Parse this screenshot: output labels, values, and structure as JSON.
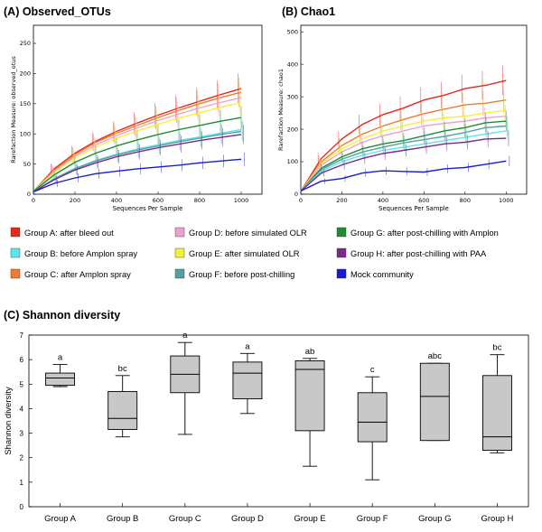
{
  "panel_a_title": "(A) Observed_OTUs",
  "panel_b_title": "(B) Chao1",
  "panel_c_title": "(C) Shannon diversity",
  "legend": [
    {
      "label": "Group A: after bleed out",
      "color": "#e8261e"
    },
    {
      "label": "Group B: before Amplon spray",
      "color": "#5ee6ee"
    },
    {
      "label": "Group C: after Amplon spray",
      "color": "#ee7c2c"
    },
    {
      "label": "Group D: before simulated OLR",
      "color": "#f0a0d0"
    },
    {
      "label": "Group E: after simulated OLR",
      "color": "#f2f23a"
    },
    {
      "label": "Group F: before post-chilling",
      "color": "#55a0a0"
    },
    {
      "label": "Group G: after post-chilling with Amplon",
      "color": "#1e8a34"
    },
    {
      "label": "Group H: after post-chilling with PAA",
      "color": "#7b2a8a"
    },
    {
      "label": "Mock community",
      "color": "#1a1ad4"
    }
  ],
  "chart_data": [
    {
      "type": "line",
      "title": "(A) Observed_OTUs",
      "xlabel": "Sequences Per Sample",
      "ylabel": "Rarefaction Measure: observed_otus",
      "xlim": [
        0,
        1100
      ],
      "ylim": [
        0,
        280
      ],
      "xticks": [
        "0",
        "200",
        "400",
        "600",
        "800",
        "1000"
      ],
      "yticks": [
        "0",
        "50",
        "100",
        "150",
        "200",
        "250"
      ],
      "x": [
        1,
        100,
        200,
        300,
        400,
        500,
        600,
        700,
        800,
        900,
        1000
      ],
      "series": [
        {
          "name": "Group A: after bleed out",
          "values": [
            5,
            42,
            68,
            88,
            104,
            118,
            131,
            143,
            154,
            165,
            175
          ]
        },
        {
          "name": "Group C: after Amplon spray",
          "values": [
            5,
            40,
            66,
            86,
            101,
            114,
            127,
            139,
            150,
            160,
            169
          ]
        },
        {
          "name": "Group D: before simulated OLR",
          "values": [
            5,
            38,
            63,
            82,
            97,
            110,
            122,
            133,
            143,
            152,
            160
          ]
        },
        {
          "name": "Group E: after simulated OLR",
          "values": [
            5,
            36,
            60,
            78,
            93,
            105,
            116,
            126,
            135,
            144,
            152
          ]
        },
        {
          "name": "Group G: after post-chilling with Amplon",
          "values": [
            5,
            32,
            53,
            68,
            80,
            90,
            99,
            107,
            114,
            121,
            127
          ]
        },
        {
          "name": "Group B: before Amplon spray",
          "values": [
            4,
            26,
            43,
            56,
            66,
            75,
            82,
            89,
            95,
            101,
            107
          ]
        },
        {
          "name": "Group F: before post-chilling",
          "values": [
            4,
            25,
            42,
            55,
            65,
            73,
            80,
            87,
            93,
            99,
            104
          ]
        },
        {
          "name": "Group H: after post-chilling with PAA",
          "values": [
            4,
            24,
            40,
            52,
            62,
            70,
            77,
            83,
            89,
            94,
            99
          ]
        },
        {
          "name": "Mock community",
          "values": [
            4,
            18,
            27,
            34,
            38,
            42,
            45,
            48,
            52,
            55,
            58
          ]
        }
      ]
    },
    {
      "type": "line",
      "title": "(B) Chao1",
      "xlabel": "Sequences Per Sample",
      "ylabel": "Rarefaction Measure: chao1",
      "xlim": [
        0,
        1100
      ],
      "ylim": [
        0,
        520
      ],
      "xticks": [
        "0",
        "200",
        "400",
        "600",
        "800",
        "1000"
      ],
      "yticks": [
        "0",
        "100",
        "200",
        "300",
        "400",
        "500"
      ],
      "x": [
        1,
        100,
        200,
        300,
        400,
        500,
        600,
        700,
        800,
        900,
        1000
      ],
      "series": [
        {
          "name": "Group A: after bleed out",
          "values": [
            10,
            110,
            170,
            215,
            245,
            265,
            290,
            305,
            325,
            335,
            350
          ]
        },
        {
          "name": "Group C: after Amplon spray",
          "values": [
            10,
            100,
            150,
            185,
            210,
            230,
            248,
            262,
            275,
            280,
            290
          ]
        },
        {
          "name": "Group E: after simulated OLR",
          "values": [
            10,
            95,
            140,
            170,
            195,
            210,
            225,
            235,
            240,
            250,
            258
          ]
        },
        {
          "name": "Group D: before simulated OLR",
          "values": [
            10,
            90,
            130,
            160,
            180,
            195,
            210,
            218,
            225,
            235,
            240
          ]
        },
        {
          "name": "Group G: after post-chilling with Amplon",
          "values": [
            10,
            80,
            115,
            140,
            155,
            165,
            180,
            195,
            205,
            220,
            225
          ]
        },
        {
          "name": "Group F: before post-chilling",
          "values": [
            10,
            75,
            108,
            130,
            145,
            158,
            168,
            178,
            190,
            205,
            210
          ]
        },
        {
          "name": "Group B: before Amplon spray",
          "values": [
            10,
            70,
            100,
            120,
            135,
            145,
            155,
            165,
            175,
            185,
            195
          ]
        },
        {
          "name": "Group H: after post-chilling with PAA",
          "values": [
            10,
            65,
            90,
            110,
            125,
            135,
            145,
            155,
            160,
            170,
            172
          ]
        },
        {
          "name": "Mock community",
          "values": [
            10,
            40,
            48,
            65,
            72,
            70,
            68,
            78,
            82,
            92,
            102
          ]
        }
      ]
    },
    {
      "type": "box",
      "title": "(C) Shannon diversity",
      "xlabel": "",
      "ylabel": "Shannon diversity",
      "ylim": [
        0,
        7
      ],
      "yticks": [
        "0",
        "1",
        "2",
        "3",
        "4",
        "5",
        "6",
        "7"
      ],
      "categories": [
        "Group A",
        "Group B",
        "Group C",
        "Group D",
        "Group E",
        "Group F",
        "Group G",
        "Group H"
      ],
      "letters": [
        "a",
        "bc",
        "a",
        "a",
        "ab",
        "c",
        "abc",
        "bc"
      ],
      "boxes": [
        {
          "min": 4.9,
          "q1": 4.95,
          "median": 5.25,
          "q3": 5.45,
          "max": 5.8
        },
        {
          "min": 2.85,
          "q1": 3.15,
          "median": 3.6,
          "q3": 4.7,
          "max": 5.35
        },
        {
          "min": 2.95,
          "q1": 4.65,
          "median": 5.4,
          "q3": 6.15,
          "max": 6.7
        },
        {
          "min": 3.8,
          "q1": 4.4,
          "median": 5.45,
          "q3": 5.9,
          "max": 6.25
        },
        {
          "min": 1.65,
          "q1": 3.1,
          "median": 5.6,
          "q3": 5.95,
          "max": 6.05
        },
        {
          "min": 1.1,
          "q1": 2.65,
          "median": 3.45,
          "q3": 4.65,
          "max": 5.3
        },
        {
          "min": 2.7,
          "q1": 2.7,
          "median": 4.5,
          "q3": 5.85,
          "max": 5.85
        },
        {
          "min": 2.2,
          "q1": 2.3,
          "median": 2.85,
          "q3": 5.35,
          "max": 6.2
        }
      ]
    }
  ]
}
